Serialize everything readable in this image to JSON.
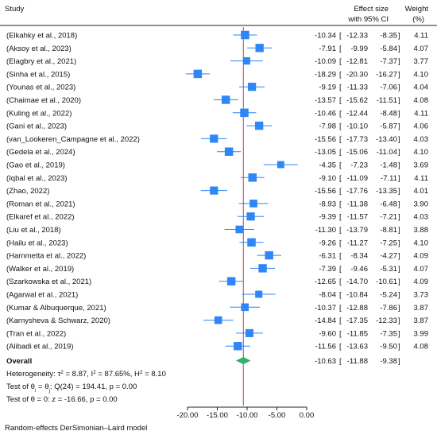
{
  "chart_data": {
    "type": "forest",
    "headers": {
      "study": "Study",
      "effect_line1": "Effect size",
      "effect_line2": "with 95% CI",
      "weight_line1": "Weight",
      "weight_line2": "(%)"
    },
    "studies": [
      {
        "name": "(Elkahky et al., 2018)",
        "es": -10.34,
        "lo": -12.33,
        "hi": -8.35,
        "weight": "4.11",
        "es_text": "-10.34",
        "lo_text": "-12.33",
        "hi_text": "-8.35"
      },
      {
        "name": "(Aksoy et al., 2023)",
        "es": -7.91,
        "lo": -9.99,
        "hi": -5.84,
        "weight": "4.07",
        "es_text": "-7.91",
        "lo_text": "-9.99",
        "hi_text": "-5.84"
      },
      {
        "name": "(Elagbry et al., 2021)",
        "es": -10.09,
        "lo": -12.81,
        "hi": -7.37,
        "weight": "3.77",
        "es_text": "-10.09",
        "lo_text": "-12.81",
        "hi_text": "-7.37"
      },
      {
        "name": "(Sinha et al., 2015)",
        "es": -18.29,
        "lo": -20.3,
        "hi": -16.27,
        "weight": "4.10",
        "es_text": "-18.29",
        "lo_text": "-20.30",
        "hi_text": "-16.27"
      },
      {
        "name": "(Younas et al., 2023)",
        "es": -9.19,
        "lo": -11.33,
        "hi": -7.06,
        "weight": "4.04",
        "es_text": "-9.19",
        "lo_text": "-11.33",
        "hi_text": "-7.06"
      },
      {
        "name": "(Chaimae et al., 2020)",
        "es": -13.57,
        "lo": -15.62,
        "hi": -11.51,
        "weight": "4.08",
        "es_text": "-13.57",
        "lo_text": "-15.62",
        "hi_text": "-11.51"
      },
      {
        "name": "(Kuling  et al., 2022)",
        "es": -10.46,
        "lo": -12.44,
        "hi": -8.48,
        "weight": "4.11",
        "es_text": "-10.46",
        "lo_text": "-12.44",
        "hi_text": "-8.48"
      },
      {
        "name": "(Gani et al., 2023)",
        "es": -7.98,
        "lo": -10.1,
        "hi": -5.87,
        "weight": "4.06",
        "es_text": "-7.98",
        "lo_text": "-10.10",
        "hi_text": "-5.87"
      },
      {
        "name": "(van_Lookeren_Campagne et al., 2022)",
        "es": -15.56,
        "lo": -17.73,
        "hi": -13.4,
        "weight": "4.03",
        "es_text": "-15.56",
        "lo_text": "-17.73",
        "hi_text": "-13.40"
      },
      {
        "name": "(Gedela et al., 2024)",
        "es": -13.05,
        "lo": -15.06,
        "hi": -11.04,
        "weight": "4.10",
        "es_text": "-13.05",
        "lo_text": "-15.06",
        "hi_text": "-11.04"
      },
      {
        "name": "(Gao et al., 2019)",
        "es": -4.35,
        "lo": -7.23,
        "hi": -1.48,
        "weight": "3.69",
        "es_text": "-4.35",
        "lo_text": "-7.23",
        "hi_text": "-1.48"
      },
      {
        "name": "(Iqbal et al., 2023)",
        "es": -9.1,
        "lo": -11.09,
        "hi": -7.11,
        "weight": "4.11",
        "es_text": "-9.10",
        "lo_text": "-11.09",
        "hi_text": "-7.11"
      },
      {
        "name": "(Zhao, 2022)",
        "es": -15.56,
        "lo": -17.76,
        "hi": -13.35,
        "weight": "4.01",
        "es_text": "-15.56",
        "lo_text": "-17.76",
        "hi_text": "-13.35"
      },
      {
        "name": "(Roman et al., 2021)",
        "es": -8.93,
        "lo": -11.38,
        "hi": -6.48,
        "weight": "3.90",
        "es_text": "-8.93",
        "lo_text": "-11.38",
        "hi_text": "-6.48"
      },
      {
        "name": "(Elkaref et al., 2022)",
        "es": -9.39,
        "lo": -11.57,
        "hi": -7.21,
        "weight": "4.03",
        "es_text": "-9.39",
        "lo_text": "-11.57",
        "hi_text": "-7.21"
      },
      {
        "name": "(Liu et al., 2018)",
        "es": -11.3,
        "lo": -13.79,
        "hi": -8.81,
        "weight": "3.88",
        "es_text": "-11.30",
        "lo_text": "-13.79",
        "hi_text": "-8.81"
      },
      {
        "name": "(Hailu et al., 2023)",
        "es": -9.26,
        "lo": -11.27,
        "hi": -7.25,
        "weight": "4.10",
        "es_text": "-9.26",
        "lo_text": "-11.27",
        "hi_text": "-7.25"
      },
      {
        "name": "(Harnmetta  et al., 2022)",
        "es": -6.31,
        "lo": -8.34,
        "hi": -4.27,
        "weight": "4.09",
        "es_text": "-6.31",
        "lo_text": "-8.34",
        "hi_text": "-4.27"
      },
      {
        "name": "(Walker et al., 2019)",
        "es": -7.39,
        "lo": -9.46,
        "hi": -5.31,
        "weight": "4.07",
        "es_text": "-7.39",
        "lo_text": "-9.46",
        "hi_text": "-5.31"
      },
      {
        "name": "(Szarkowska  et al., 2021)",
        "es": -12.65,
        "lo": -14.7,
        "hi": -10.61,
        "weight": "4.09",
        "es_text": "-12.65",
        "lo_text": "-14.70",
        "hi_text": "-10.61"
      },
      {
        "name": "(Agarwal et al., 2021)",
        "es": -8.04,
        "lo": -10.84,
        "hi": -5.24,
        "weight": "3.73",
        "es_text": "-8.04",
        "lo_text": "-10.84",
        "hi_text": "-5.24"
      },
      {
        "name": "(Kumar & Albuquerque, 2021)",
        "es": -10.37,
        "lo": -12.88,
        "hi": -7.86,
        "weight": "3.87",
        "es_text": "-10.37",
        "lo_text": "-12.88",
        "hi_text": "-7.86"
      },
      {
        "name": "(Karnysheva & Schwarz, 2020)",
        "es": -14.84,
        "lo": -17.35,
        "hi": -12.33,
        "weight": "3.87",
        "es_text": "-14.84",
        "lo_text": "-17.35",
        "hi_text": "-12.33"
      },
      {
        "name": "(Tran  et al., 2022)",
        "es": -9.6,
        "lo": -11.85,
        "hi": -7.35,
        "weight": "3.99",
        "es_text": "-9.60",
        "lo_text": "-11.85",
        "hi_text": "-7.35"
      },
      {
        "name": "(Alibadi et al., 2019)",
        "es": -11.56,
        "lo": -13.63,
        "hi": -9.5,
        "weight": "4.08",
        "es_text": "-11.56",
        "lo_text": "-13.63",
        "hi_text": "-9.50"
      }
    ],
    "overall": {
      "label": "Overall",
      "es": -10.63,
      "lo": -11.88,
      "hi": -9.38,
      "es_text": "-10.63",
      "lo_text": "-11.88",
      "hi_text": "-9.38"
    },
    "heterogeneity": {
      "prefix": "Heterogeneity: ",
      "tau_val": " = 8.87, ",
      "i_val": " = 87.65%, ",
      "h_val": " = 8.10"
    },
    "test_theta_i": {
      "prefix": "Test of ",
      "mid": " = ",
      "rest": ": Q(24) = 194.41, p = 0.00"
    },
    "test_theta": {
      "text": "Test of θ = 0: z = -16.66, p = 0.00"
    },
    "x_axis": {
      "ticks": [
        -20,
        -15,
        -10,
        -5,
        0
      ],
      "tick_labels": [
        "-20.00",
        "-15.00",
        "-10.00",
        "-5.00",
        "0.00"
      ],
      "range": [
        -22.5,
        2.0
      ]
    },
    "reference_line": -10.63,
    "footnote": "Random-effects DerSimonian–Laird model",
    "colors": {
      "marker": "#2f86f6",
      "ci_line": "#2f86f6",
      "diamond": "#2db36b",
      "reference": "#c0405a",
      "axis": "#222222"
    }
  }
}
